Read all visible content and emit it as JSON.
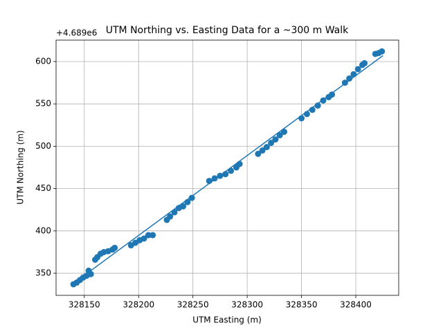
{
  "chart_data": {
    "type": "scatter",
    "title": "UTM Northing vs. Easting Data for a ~300 m Walk",
    "x_label": "UTM Easting (m)",
    "y_label": "UTM Northing (m)",
    "y_offset_text": "+4.689e6",
    "color": "#1f77b4",
    "grid": true,
    "xlim": [
      328124,
      328439.5
    ],
    "ylim": [
      323.9,
      625.3
    ],
    "xticks": [
      328150,
      328200,
      328250,
      328300,
      328350,
      328400
    ],
    "yticks": [
      350,
      400,
      450,
      500,
      550,
      600
    ],
    "points": {
      "x": [
        328140,
        328143,
        328146,
        328149,
        328152,
        328154,
        328156,
        328160,
        328162,
        328165,
        328168,
        328172,
        328176,
        328178,
        328193,
        328197,
        328201,
        328205,
        328209,
        328213,
        328226,
        328229,
        328233,
        328237,
        328241,
        328245,
        328249,
        328265,
        328270,
        328275,
        328280,
        328285,
        328290,
        328293,
        328310,
        328314,
        328318,
        328322,
        328326,
        328330,
        328334,
        328350,
        328355,
        328360,
        328365,
        328370,
        328375,
        328378,
        328390,
        328394,
        328398,
        328402,
        328406,
        328408,
        328418,
        328421,
        328424
      ],
      "y": [
        337,
        339,
        342,
        345,
        347,
        353,
        349,
        366,
        369,
        373,
        375,
        376,
        378,
        380,
        383,
        386,
        389,
        391,
        395,
        395,
        413,
        417,
        422,
        427,
        429,
        434,
        439,
        459,
        462,
        465,
        467,
        471,
        475,
        479,
        491,
        495,
        499,
        504,
        508,
        513,
        517,
        533,
        538,
        543,
        548,
        554,
        558,
        561,
        575,
        580,
        585,
        591,
        596,
        598,
        609,
        610,
        612
      ]
    },
    "fit_line": {
      "x": [
        328140,
        328425
      ],
      "y": [
        338,
        607
      ]
    }
  }
}
